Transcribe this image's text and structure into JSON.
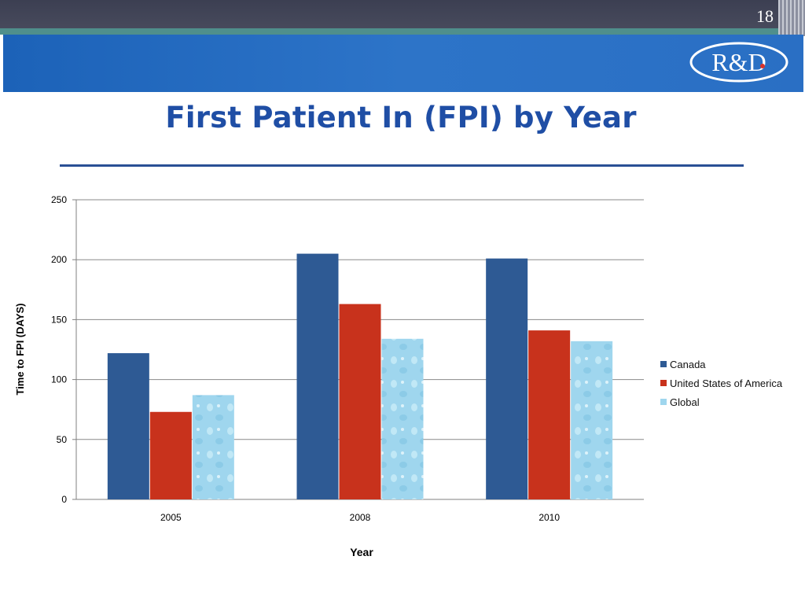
{
  "slide_number": "18",
  "logo_text": "R&D",
  "title": "First Patient In (FPI) by Year",
  "colors": {
    "canada": "#2e5a94",
    "usa": "#c8321c",
    "global": "#9fd6ee",
    "title": "#1f4ea5",
    "banner": "#1c62b8"
  },
  "chart_data": {
    "type": "bar",
    "title": "First Patient In (FPI) by Year",
    "xlabel": "Year",
    "ylabel": "Time to FPI (DAYS)",
    "categories": [
      "2005",
      "2008",
      "2010"
    ],
    "series": [
      {
        "name": "Canada",
        "values": [
          122,
          205,
          201
        ]
      },
      {
        "name": "United States of America",
        "values": [
          73,
          163,
          141
        ]
      },
      {
        "name": "Global",
        "values": [
          87,
          134,
          132
        ]
      }
    ],
    "ylim": [
      0,
      250
    ],
    "yticks": [
      0,
      50,
      100,
      150,
      200,
      250
    ],
    "grid": true,
    "legend": "right"
  }
}
